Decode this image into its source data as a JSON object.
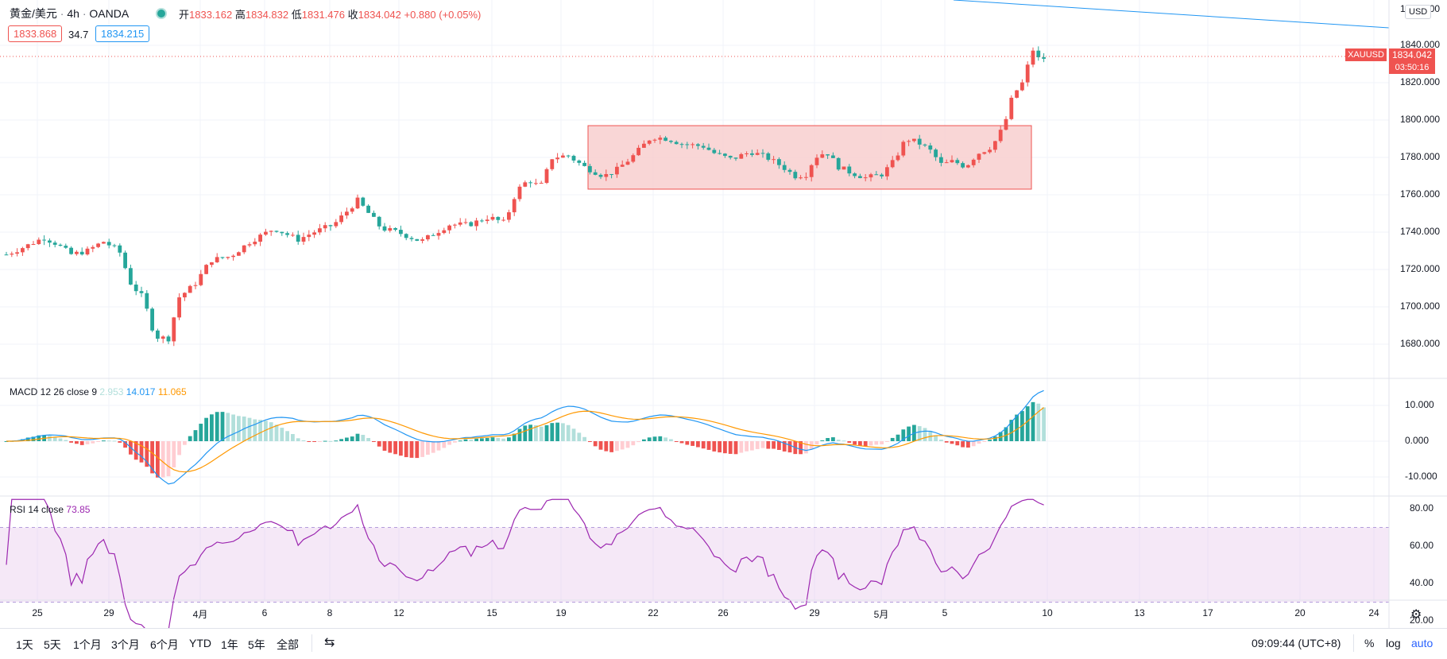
{
  "header": {
    "symbol_name": "黄金/美元",
    "interval": "4h",
    "exchange": "OANDA",
    "open_label": "开",
    "open": "1833.162",
    "high_label": "高",
    "high": "1834.832",
    "low_label": "低",
    "low": "1831.476",
    "close_label": "收",
    "close": "1834.042",
    "change": "+0.880 (+0.05%)",
    "bid": "1833.868",
    "spread": "34.7",
    "ask": "1834.215"
  },
  "price_axis": {
    "currency": "USD",
    "top_partial": "1860.000",
    "ticks": [
      "1840.000",
      "1820.000",
      "1800.000",
      "1780.000",
      "1760.000",
      "1740.000",
      "1720.000",
      "1700.000",
      "1680.000"
    ]
  },
  "last_price": {
    "symbol": "XAUUSD",
    "price": "1834.042",
    "countdown": "03:50:16"
  },
  "macd": {
    "label": "MACD 12 26 close 9",
    "hist": "2.953",
    "macd": "14.017",
    "signal": "11.065",
    "ticks": [
      "10.000",
      "0.000",
      "-10.000"
    ]
  },
  "rsi": {
    "label": "RSI 14 close",
    "value": "73.85",
    "ticks": [
      "80.00",
      "60.00",
      "40.00",
      "20.00"
    ]
  },
  "time_axis": {
    "labels": [
      "25",
      "29",
      "4月",
      "6",
      "8",
      "12",
      "15",
      "19",
      "22",
      "26",
      "29",
      "5月",
      "5",
      "10",
      "13",
      "17",
      "20",
      "24"
    ]
  },
  "bottom_bar": {
    "periods": [
      "1天",
      "5天",
      "1个月",
      "3个月",
      "6个月",
      "YTD",
      "1年",
      "5年",
      "全部"
    ],
    "clock": "09:09:44 (UTC+8)",
    "percent": "%",
    "log": "log",
    "auto": "auto"
  },
  "colors": {
    "up": "#ef5350",
    "down": "#26a69a",
    "macd_line": "#2196f3",
    "signal_line": "#ff9800",
    "rsi_line": "#9c27b0",
    "zone_fill": "#f8cccc",
    "zone_border": "#ef5350"
  },
  "chart_data": {
    "type": "candlestick",
    "symbol": "XAUUSD",
    "interval": "4h",
    "price_range": [
      1670,
      1860
    ],
    "indicators": [
      "MACD 12 26 close 9",
      "RSI 14 close"
    ],
    "consolidation_zone": {
      "price_low": 1763,
      "price_high": 1797
    },
    "anchors": [
      {
        "x": 8,
        "c": 1728
      },
      {
        "x": 30,
        "c": 1732
      },
      {
        "x": 55,
        "c": 1737
      },
      {
        "x": 70,
        "c": 1734
      },
      {
        "x": 90,
        "c": 1728
      },
      {
        "x": 110,
        "c": 1730
      },
      {
        "x": 130,
        "c": 1735
      },
      {
        "x": 150,
        "c": 1730
      },
      {
        "x": 165,
        "c": 1712
      },
      {
        "x": 180,
        "c": 1705
      },
      {
        "x": 195,
        "c": 1684
      },
      {
        "x": 212,
        "c": 1683
      },
      {
        "x": 225,
        "c": 1705
      },
      {
        "x": 245,
        "c": 1712
      },
      {
        "x": 265,
        "c": 1725
      },
      {
        "x": 290,
        "c": 1727
      },
      {
        "x": 315,
        "c": 1735
      },
      {
        "x": 345,
        "c": 1742
      },
      {
        "x": 375,
        "c": 1736
      },
      {
        "x": 395,
        "c": 1740
      },
      {
        "x": 420,
        "c": 1744
      },
      {
        "x": 450,
        "c": 1757
      },
      {
        "x": 480,
        "c": 1742
      },
      {
        "x": 500,
        "c": 1740
      },
      {
        "x": 530,
        "c": 1735
      },
      {
        "x": 565,
        "c": 1744
      },
      {
        "x": 590,
        "c": 1744
      },
      {
        "x": 615,
        "c": 1748
      },
      {
        "x": 635,
        "c": 1745
      },
      {
        "x": 650,
        "c": 1762
      },
      {
        "x": 665,
        "c": 1768
      },
      {
        "x": 680,
        "c": 1764
      },
      {
        "x": 695,
        "c": 1780
      },
      {
        "x": 715,
        "c": 1781
      },
      {
        "x": 735,
        "c": 1775
      },
      {
        "x": 760,
        "c": 1770
      },
      {
        "x": 775,
        "c": 1773
      },
      {
        "x": 795,
        "c": 1780
      },
      {
        "x": 820,
        "c": 1791
      },
      {
        "x": 840,
        "c": 1790
      },
      {
        "x": 860,
        "c": 1787
      },
      {
        "x": 885,
        "c": 1786
      },
      {
        "x": 900,
        "c": 1782
      },
      {
        "x": 920,
        "c": 1779
      },
      {
        "x": 945,
        "c": 1783
      },
      {
        "x": 965,
        "c": 1780
      },
      {
        "x": 985,
        "c": 1775
      },
      {
        "x": 1000,
        "c": 1770
      },
      {
        "x": 1015,
        "c": 1771
      },
      {
        "x": 1025,
        "c": 1780
      },
      {
        "x": 1040,
        "c": 1783
      },
      {
        "x": 1055,
        "c": 1775
      },
      {
        "x": 1070,
        "c": 1772
      },
      {
        "x": 1090,
        "c": 1769
      },
      {
        "x": 1110,
        "c": 1771
      },
      {
        "x": 1125,
        "c": 1778
      },
      {
        "x": 1140,
        "c": 1790
      },
      {
        "x": 1155,
        "c": 1788
      },
      {
        "x": 1170,
        "c": 1784
      },
      {
        "x": 1185,
        "c": 1776
      },
      {
        "x": 1200,
        "c": 1778
      },
      {
        "x": 1215,
        "c": 1775
      },
      {
        "x": 1230,
        "c": 1782
      },
      {
        "x": 1245,
        "c": 1785
      },
      {
        "x": 1255,
        "c": 1790
      },
      {
        "x": 1265,
        "c": 1799
      },
      {
        "x": 1275,
        "c": 1814
      },
      {
        "x": 1282,
        "c": 1817
      },
      {
        "x": 1290,
        "c": 1822
      },
      {
        "x": 1298,
        "c": 1839
      },
      {
        "x": 1308,
        "c": 1832
      },
      {
        "x": 1318,
        "c": 1834
      }
    ]
  }
}
